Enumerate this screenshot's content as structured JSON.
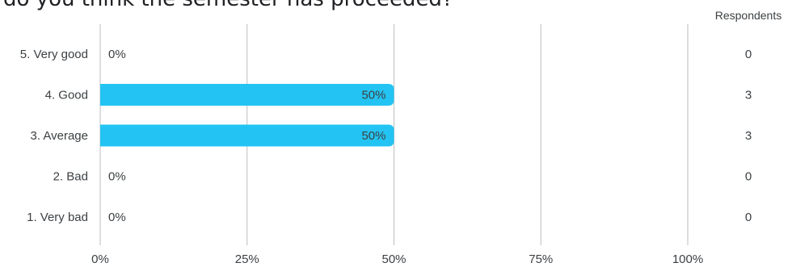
{
  "question_title": "do you think the semester has proceeded?",
  "respondents_header": "Respondents",
  "chart_data": {
    "type": "bar",
    "orientation": "horizontal",
    "title": "do you think the semester has proceeded?",
    "categories": [
      "5. Very good",
      "4. Good",
      "3. Average",
      "2. Bad",
      "1. Very bad"
    ],
    "values": [
      0,
      50,
      50,
      0,
      0
    ],
    "value_labels": [
      "0%",
      "50%",
      "50%",
      "0%",
      "0%"
    ],
    "respondents": [
      0,
      3,
      3,
      0,
      0
    ],
    "xlim": [
      0,
      100
    ],
    "xticks": [
      "0%",
      "25%",
      "50%",
      "75%",
      "100%"
    ],
    "grid": true,
    "bar_color": "#23c4f3",
    "grid_color": "#bdbdbd"
  }
}
